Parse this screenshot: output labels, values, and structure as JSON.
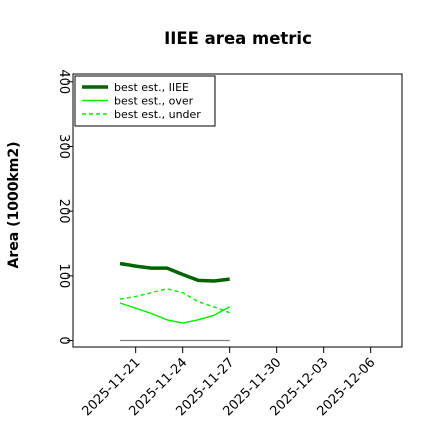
{
  "chart_data": {
    "type": "line",
    "title": "IIEE area metric",
    "ylabel": "Area (1000km2)",
    "xlabel": "",
    "x_start": "2025-11-19",
    "x_ticks": [
      "2025-11-21",
      "2025-11-24",
      "2025-11-27",
      "2025-11-30",
      "2025-12-03",
      "2025-12-06"
    ],
    "xlim": [
      "2025-11-17",
      "2025-12-08"
    ],
    "ylim": [
      -10,
      412
    ],
    "yticks": [
      0,
      100,
      200,
      300,
      400
    ],
    "legend_position": "top-left",
    "baseline": {
      "x": [
        "2025-11-20",
        "2025-11-27"
      ],
      "values": [
        0,
        0
      ],
      "color": "#808080"
    },
    "series": [
      {
        "name": "best est., IIEE",
        "color": "#006400",
        "style": "solid-thick",
        "x": [
          "2025-11-20",
          "2025-11-21",
          "2025-11-22",
          "2025-11-23",
          "2025-11-24",
          "2025-11-25",
          "2025-11-26",
          "2025-11-27"
        ],
        "values": [
          119,
          115,
          112,
          112,
          102,
          93,
          92,
          95
        ]
      },
      {
        "name": "best est., over",
        "color": "#00ee00",
        "style": "solid",
        "x": [
          "2025-11-20",
          "2025-11-21",
          "2025-11-22",
          "2025-11-23",
          "2025-11-24",
          "2025-11-25",
          "2025-11-26",
          "2025-11-27"
        ],
        "values": [
          58,
          50,
          42,
          32,
          27,
          32,
          39,
          52
        ]
      },
      {
        "name": "best est., under",
        "color": "#00ee00",
        "style": "dashed",
        "x": [
          "2025-11-20",
          "2025-11-21",
          "2025-11-22",
          "2025-11-23",
          "2025-11-24",
          "2025-11-25",
          "2025-11-26",
          "2025-11-27"
        ],
        "values": [
          64,
          68,
          74,
          80,
          74,
          60,
          52,
          43
        ]
      }
    ]
  }
}
